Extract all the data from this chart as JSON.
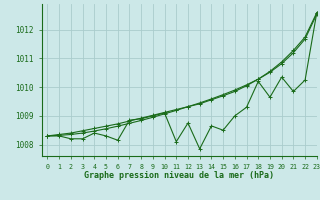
{
  "xlabel": "Graphe pression niveau de la mer (hPa)",
  "bg_color": "#cce8e8",
  "grid_color": "#aacccc",
  "line_color": "#1a6b1a",
  "text_color": "#1a6b1a",
  "ylim": [
    1007.6,
    1012.9
  ],
  "xlim": [
    -0.5,
    23
  ],
  "yticks": [
    1008,
    1009,
    1010,
    1011,
    1012
  ],
  "xticks": [
    0,
    1,
    2,
    3,
    4,
    5,
    6,
    7,
    8,
    9,
    10,
    11,
    12,
    13,
    14,
    15,
    16,
    17,
    18,
    19,
    20,
    21,
    22,
    23
  ],
  "hours": [
    0,
    1,
    2,
    3,
    4,
    5,
    6,
    7,
    8,
    9,
    10,
    11,
    12,
    13,
    14,
    15,
    16,
    17,
    18,
    19,
    20,
    21,
    22,
    23
  ],
  "series_smooth1": [
    1008.3,
    1008.35,
    1008.4,
    1008.48,
    1008.56,
    1008.64,
    1008.72,
    1008.82,
    1008.92,
    1009.02,
    1009.12,
    1009.22,
    1009.32,
    1009.42,
    1009.56,
    1009.7,
    1009.85,
    1010.05,
    1010.28,
    1010.55,
    1010.88,
    1011.28,
    1011.75,
    1012.6
  ],
  "series_smooth2": [
    1008.3,
    1008.32,
    1008.35,
    1008.4,
    1008.47,
    1008.55,
    1008.64,
    1008.74,
    1008.84,
    1008.95,
    1009.07,
    1009.19,
    1009.32,
    1009.45,
    1009.59,
    1009.74,
    1009.9,
    1010.08,
    1010.28,
    1010.52,
    1010.82,
    1011.2,
    1011.68,
    1012.55
  ],
  "series_jagged": [
    1008.3,
    1008.3,
    1008.2,
    1008.2,
    1008.4,
    1008.3,
    1008.15,
    1008.85,
    1008.9,
    1009.0,
    1009.1,
    1008.1,
    1008.75,
    1007.85,
    1008.65,
    1008.5,
    1009.0,
    1009.3,
    1010.2,
    1009.65,
    1010.35,
    1009.85,
    1010.25,
    1012.6
  ]
}
